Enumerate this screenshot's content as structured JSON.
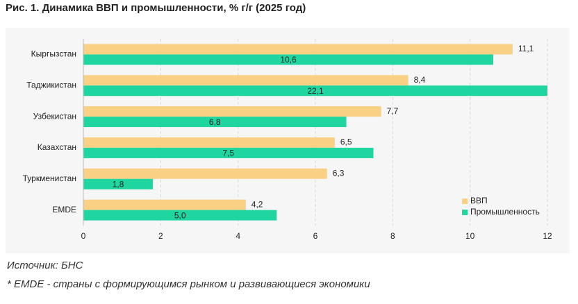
{
  "chart_data": {
    "type": "barh",
    "title": "Рис. 1. Динамика ВВП и промышленности, % г/г (2025 год)",
    "categories": [
      "Кыргызстан",
      "Таджикистан",
      "Узбекистан",
      "Казахстан",
      "Туркменистан",
      "EMDE"
    ],
    "series": [
      {
        "name": "ВВП",
        "color": "#fad085",
        "values": [
          11.1,
          8.4,
          7.7,
          6.5,
          6.3,
          4.2
        ],
        "value_labels": [
          "11,1",
          "8,4",
          "7,7",
          "6,5",
          "6,3",
          "4,2"
        ]
      },
      {
        "name": "Промышленность",
        "color": "#1fd5a0",
        "values": [
          10.6,
          22.1,
          6.8,
          7.5,
          1.8,
          5.0
        ],
        "value_labels": [
          "10,6",
          "22,1",
          "6,8",
          "7,5",
          "1,8",
          "5,0"
        ]
      }
    ],
    "xlim": [
      0,
      12
    ],
    "xticks": [
      0,
      2,
      4,
      6,
      8,
      10,
      12
    ],
    "grid": true,
    "legend": "lower right",
    "source": "Источник: БНС",
    "footnote": "* EMDE - страны с формирующимся рынком и развивающиеся экономики"
  }
}
